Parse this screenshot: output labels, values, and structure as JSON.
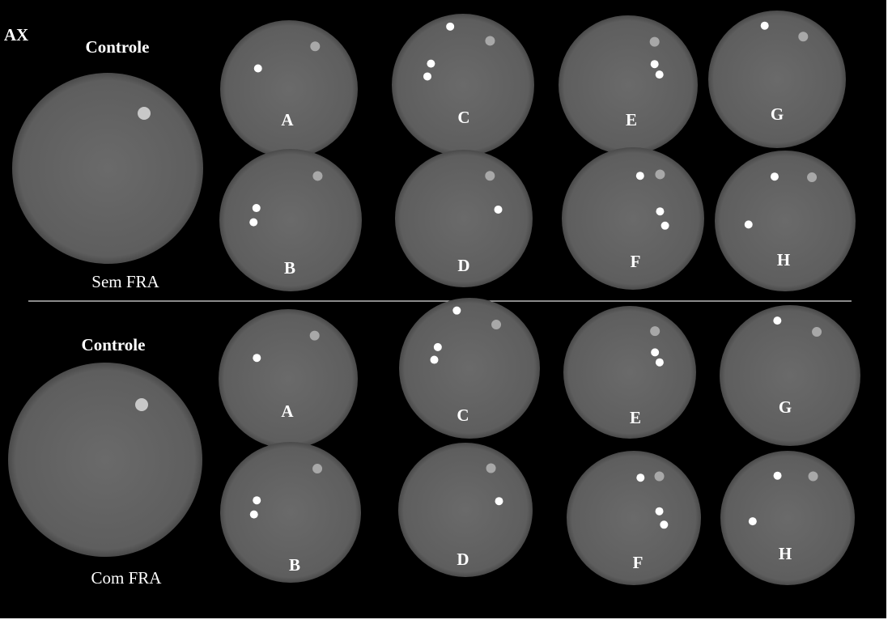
{
  "corner_label": "AX",
  "groups": [
    {
      "title": "Controle",
      "caption": "Sem FRA",
      "panels": [
        "A",
        "C",
        "E",
        "G",
        "B",
        "D",
        "F",
        "H"
      ]
    },
    {
      "title": "Controle",
      "caption": "Com FRA",
      "panels": [
        "A",
        "C",
        "E",
        "G",
        "B",
        "D",
        "F",
        "H"
      ]
    }
  ]
}
